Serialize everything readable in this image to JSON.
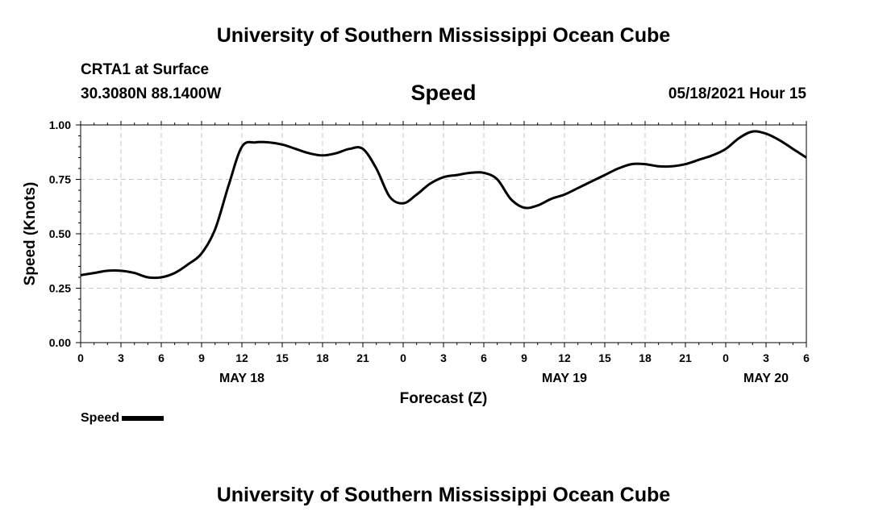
{
  "header": {
    "title": "University of Southern Mississippi Ocean Cube",
    "station": "CRTA1 at Surface",
    "coords": "30.3080N  88.1400W",
    "datetime": "05/18/2021 Hour 15"
  },
  "footer": {
    "title": "University of Southern Mississippi Ocean Cube"
  },
  "legend": {
    "label": "Speed"
  },
  "colors": {
    "line": "#000000",
    "grid": "#c8c8c8",
    "axis": "#000000"
  },
  "chart_data": {
    "type": "line",
    "title": "Speed",
    "xlabel": "Forecast (Z)",
    "ylabel": "Speed (Knots)",
    "xlim": [
      0,
      54
    ],
    "ylim": [
      0,
      1
    ],
    "grid": true,
    "x_tick_labels": [
      "0",
      "3",
      "6",
      "9",
      "12",
      "15",
      "18",
      "21",
      "0",
      "3",
      "6",
      "9",
      "12",
      "15",
      "18",
      "21",
      "0",
      "3",
      "6"
    ],
    "y_tick_labels": [
      "0.00",
      "0.25",
      "0.50",
      "0.75",
      "1.00"
    ],
    "y_ticks": [
      0,
      0.25,
      0.5,
      0.75,
      1.0
    ],
    "date_labels": [
      {
        "label": "MAY 18",
        "x": 12
      },
      {
        "label": "MAY 19",
        "x": 36
      },
      {
        "label": "MAY 20",
        "x": 51
      }
    ],
    "series": [
      {
        "name": "Speed",
        "x": [
          0,
          1,
          2,
          3,
          4,
          5,
          6,
          7,
          8,
          9,
          10,
          11,
          12,
          13,
          14,
          15,
          16,
          17,
          18,
          19,
          20,
          21,
          22,
          23,
          24,
          25,
          26,
          27,
          28,
          29,
          30,
          31,
          32,
          33,
          34,
          35,
          36,
          37,
          38,
          39,
          40,
          41,
          42,
          43,
          44,
          45,
          46,
          47,
          48,
          49,
          50,
          51,
          52,
          53,
          54
        ],
        "values": [
          0.31,
          0.32,
          0.33,
          0.33,
          0.32,
          0.3,
          0.3,
          0.32,
          0.36,
          0.41,
          0.52,
          0.72,
          0.9,
          0.92,
          0.92,
          0.91,
          0.89,
          0.87,
          0.86,
          0.87,
          0.89,
          0.89,
          0.8,
          0.67,
          0.64,
          0.68,
          0.73,
          0.76,
          0.77,
          0.78,
          0.78,
          0.75,
          0.66,
          0.62,
          0.63,
          0.66,
          0.68,
          0.71,
          0.74,
          0.77,
          0.8,
          0.82,
          0.82,
          0.81,
          0.81,
          0.82,
          0.84,
          0.86,
          0.89,
          0.94,
          0.97,
          0.96,
          0.93,
          0.89,
          0.85
        ]
      }
    ]
  }
}
